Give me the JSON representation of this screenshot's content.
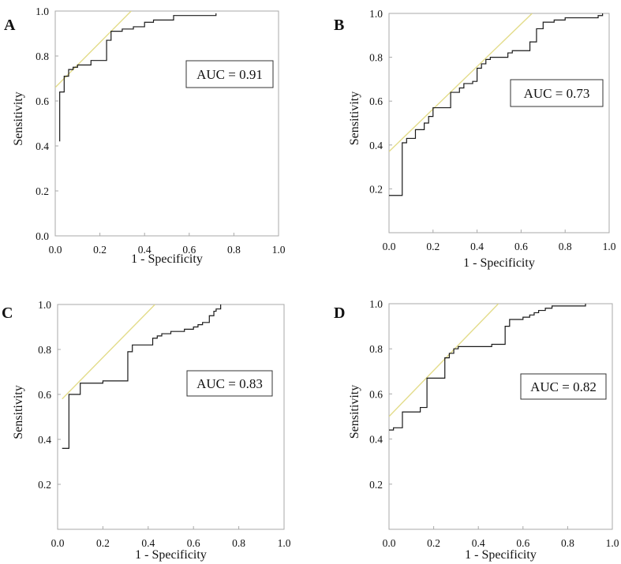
{
  "chart_data": [
    {
      "type": "line",
      "panel": "A",
      "xlabel": "1 - Specificity",
      "ylabel": "Sensitivity",
      "xlim": [
        0,
        1
      ],
      "ylim": [
        0,
        1
      ],
      "xticks": [
        "0.0",
        "0.2",
        "0.4",
        "0.6",
        "0.8",
        "1.0"
      ],
      "yticks": [
        "0.0",
        "0.2",
        "0.4",
        "0.6",
        "0.8",
        "1.0"
      ],
      "annotation": "AUC = 0.91",
      "roc_color": "#1a1a1a",
      "reference_color": "#e3dc8a",
      "reference_line": [
        [
          0,
          0.66
        ],
        [
          0.34,
          1.0
        ]
      ],
      "x": [
        0.02,
        0.02,
        0.04,
        0.04,
        0.06,
        0.06,
        0.08,
        0.08,
        0.1,
        0.1,
        0.12,
        0.12,
        0.16,
        0.16,
        0.2,
        0.2,
        0.23,
        0.23,
        0.25,
        0.25,
        0.3,
        0.3,
        0.35,
        0.35,
        0.4,
        0.4,
        0.44,
        0.44,
        0.53,
        0.53,
        0.72,
        0.72
      ],
      "y": [
        0.42,
        0.64,
        0.64,
        0.71,
        0.71,
        0.74,
        0.74,
        0.75,
        0.75,
        0.76,
        0.76,
        0.76,
        0.76,
        0.78,
        0.78,
        0.78,
        0.78,
        0.87,
        0.87,
        0.91,
        0.91,
        0.92,
        0.92,
        0.93,
        0.93,
        0.95,
        0.95,
        0.96,
        0.96,
        0.98,
        0.98,
        0.99
      ]
    },
    {
      "type": "line",
      "panel": "B",
      "xlabel": "1 - Specificity",
      "ylabel": "Sensitivity",
      "xlim": [
        0,
        1
      ],
      "ylim": [
        0,
        1
      ],
      "xticks": [
        "0.0",
        "0.2",
        "0.4",
        "0.6",
        "0.8",
        "1.0"
      ],
      "yticks": [
        "0.2",
        "0.4",
        "0.6",
        "0.8",
        "1.0"
      ],
      "annotation": "AUC = 0.73",
      "roc_color": "#1a1a1a",
      "reference_color": "#e3dc8a",
      "reference_line": [
        [
          0,
          0.37
        ],
        [
          0.65,
          1.0
        ]
      ],
      "x": [
        0,
        0.06,
        0.06,
        0.08,
        0.08,
        0.1,
        0.1,
        0.12,
        0.12,
        0.16,
        0.16,
        0.18,
        0.18,
        0.2,
        0.2,
        0.22,
        0.22,
        0.28,
        0.28,
        0.32,
        0.32,
        0.34,
        0.34,
        0.38,
        0.38,
        0.4,
        0.4,
        0.42,
        0.42,
        0.44,
        0.44,
        0.46,
        0.46,
        0.54,
        0.54,
        0.56,
        0.56,
        0.64,
        0.64,
        0.67,
        0.67,
        0.7,
        0.7,
        0.75,
        0.75,
        0.8,
        0.8,
        0.88,
        0.88,
        0.95,
        0.95,
        0.97,
        0.97
      ],
      "y": [
        0.17,
        0.17,
        0.41,
        0.41,
        0.43,
        0.43,
        0.43,
        0.43,
        0.47,
        0.47,
        0.5,
        0.5,
        0.53,
        0.53,
        0.57,
        0.57,
        0.57,
        0.57,
        0.64,
        0.64,
        0.66,
        0.66,
        0.68,
        0.68,
        0.69,
        0.69,
        0.75,
        0.75,
        0.77,
        0.77,
        0.79,
        0.79,
        0.8,
        0.8,
        0.82,
        0.82,
        0.83,
        0.83,
        0.87,
        0.87,
        0.93,
        0.93,
        0.96,
        0.96,
        0.97,
        0.97,
        0.98,
        0.98,
        0.98,
        0.98,
        0.99,
        0.99,
        1.0
      ]
    },
    {
      "type": "line",
      "panel": "C",
      "xlabel": "1 - Specificity",
      "ylabel": "Sensitivity",
      "xlim": [
        0,
        1
      ],
      "ylim": [
        0,
        1
      ],
      "xticks": [
        "0.0",
        "0.2",
        "0.4",
        "0.6",
        "0.8",
        "1.0"
      ],
      "yticks": [
        "0.2",
        "0.4",
        "0.6",
        "0.8",
        "1.0"
      ],
      "annotation": "AUC = 0.83",
      "roc_color": "#1a1a1a",
      "reference_color": "#e3dc8a",
      "reference_line": [
        [
          0.02,
          0.58
        ],
        [
          0.43,
          1.0
        ]
      ],
      "x": [
        0.02,
        0.05,
        0.05,
        0.1,
        0.1,
        0.2,
        0.2,
        0.31,
        0.31,
        0.33,
        0.33,
        0.35,
        0.35,
        0.42,
        0.42,
        0.44,
        0.44,
        0.46,
        0.46,
        0.5,
        0.5,
        0.56,
        0.56,
        0.6,
        0.6,
        0.62,
        0.62,
        0.64,
        0.64,
        0.67,
        0.67,
        0.69,
        0.69,
        0.7,
        0.7,
        0.72,
        0.72
      ],
      "y": [
        0.36,
        0.36,
        0.6,
        0.6,
        0.65,
        0.65,
        0.66,
        0.66,
        0.79,
        0.79,
        0.82,
        0.82,
        0.82,
        0.82,
        0.85,
        0.85,
        0.86,
        0.86,
        0.87,
        0.87,
        0.88,
        0.88,
        0.89,
        0.89,
        0.9,
        0.9,
        0.91,
        0.91,
        0.92,
        0.92,
        0.95,
        0.95,
        0.97,
        0.97,
        0.98,
        0.98,
        1.0
      ]
    },
    {
      "type": "line",
      "panel": "D",
      "xlabel": "1 - Specificity",
      "ylabel": "Sensitivity",
      "xlim": [
        0,
        1
      ],
      "ylim": [
        0,
        1
      ],
      "xticks": [
        "0.0",
        "0.2",
        "0.4",
        "0.6",
        "0.8",
        "1.0"
      ],
      "yticks": [
        "0.2",
        "0.4",
        "0.6",
        "0.8",
        "1.0"
      ],
      "annotation": "AUC = 0.82",
      "roc_color": "#1a1a1a",
      "reference_color": "#e3dc8a",
      "reference_line": [
        [
          0,
          0.5
        ],
        [
          0.49,
          1.0
        ]
      ],
      "x": [
        0,
        0.02,
        0.02,
        0.06,
        0.06,
        0.14,
        0.14,
        0.17,
        0.17,
        0.25,
        0.25,
        0.27,
        0.27,
        0.29,
        0.29,
        0.31,
        0.31,
        0.46,
        0.46,
        0.52,
        0.52,
        0.54,
        0.54,
        0.6,
        0.6,
        0.63,
        0.63,
        0.65,
        0.65,
        0.67,
        0.67,
        0.7,
        0.7,
        0.73,
        0.73,
        0.88,
        0.88
      ],
      "y": [
        0.44,
        0.44,
        0.45,
        0.45,
        0.52,
        0.52,
        0.54,
        0.54,
        0.67,
        0.67,
        0.76,
        0.76,
        0.78,
        0.78,
        0.8,
        0.8,
        0.81,
        0.81,
        0.82,
        0.82,
        0.9,
        0.9,
        0.93,
        0.93,
        0.94,
        0.94,
        0.95,
        0.95,
        0.96,
        0.96,
        0.97,
        0.97,
        0.98,
        0.98,
        0.99,
        0.99,
        1.0
      ]
    }
  ]
}
